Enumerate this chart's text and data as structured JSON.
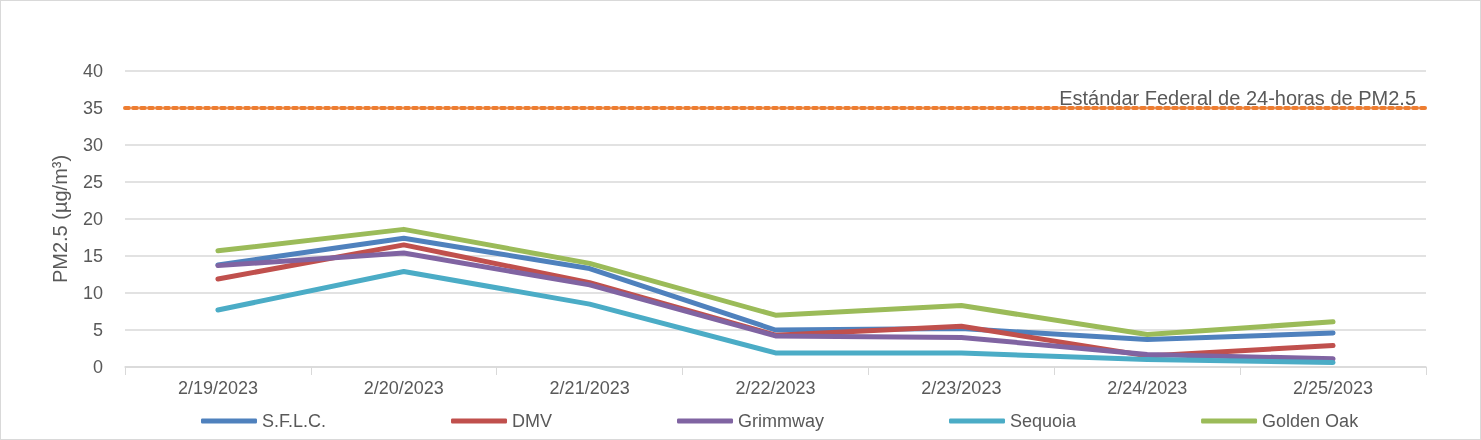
{
  "chart_data": {
    "type": "line",
    "ylabel": "PM2.5 (µg/m³)",
    "categories": [
      "2/19/2023",
      "2/20/2023",
      "2/21/2023",
      "2/22/2023",
      "2/23/2023",
      "2/24/2023",
      "2/25/2023"
    ],
    "series": [
      {
        "name": "S.F.L.C.",
        "color": "#4f81bd",
        "values": [
          13.8,
          17.4,
          13.3,
          5.0,
          5.2,
          3.7,
          4.6
        ]
      },
      {
        "name": "DMV",
        "color": "#c0504d",
        "values": [
          11.9,
          16.5,
          11.4,
          4.3,
          5.5,
          1.5,
          2.9
        ]
      },
      {
        "name": "Grimmway",
        "color": "#8064a2",
        "values": [
          13.7,
          15.4,
          11.1,
          4.2,
          4.0,
          1.7,
          1.1
        ]
      },
      {
        "name": "Sequoia",
        "color": "#4bacc6",
        "values": [
          7.7,
          12.9,
          8.5,
          1.9,
          1.9,
          1.0,
          0.6
        ]
      },
      {
        "name": "Golden Oak",
        "color": "#9bbb59",
        "values": [
          15.7,
          18.6,
          14.0,
          7.0,
          8.3,
          4.4,
          6.1
        ]
      }
    ],
    "ylim": [
      0,
      40
    ],
    "yticks": [
      0,
      5,
      10,
      15,
      20,
      25,
      30,
      35,
      40
    ],
    "ref_lines": [
      {
        "axis": "y",
        "value": 35,
        "label": "Estándar Federal de 24-horas de PM2.5",
        "color": "#ed7d31",
        "line_style": "dotted"
      }
    ],
    "grid": "y",
    "legend": "bottom",
    "marker": "none",
    "line_style": "solid"
  }
}
